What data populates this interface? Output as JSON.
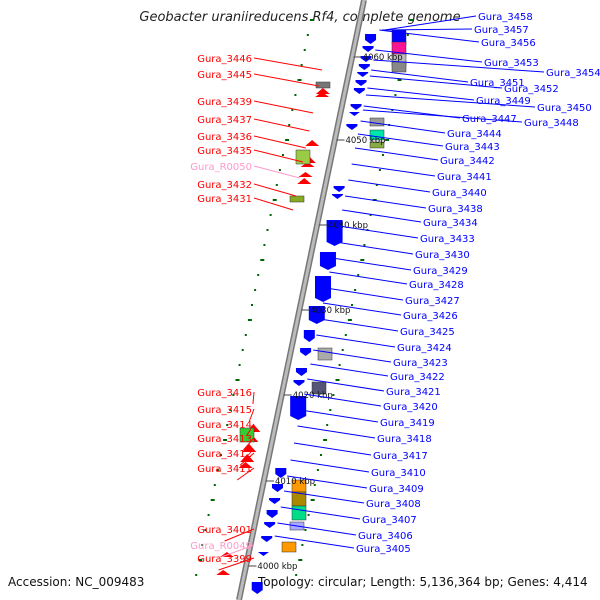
{
  "title": "Geobacter uraniireducens Rf4, complete genome",
  "footer": {
    "accession": "Accession: NC_009483",
    "summary": "Topology: circular; Length: 5,136,364 bp; Genes: 4,414"
  },
  "colors": {
    "forward": "#ff0000",
    "reverse": "#0000ff",
    "rna": "#ff99cc",
    "backbone": "#999999",
    "tick": "#006600"
  },
  "ruler": [
    "4060 kbp",
    "4050 kbp",
    "4040 kbp",
    "4030 kbp",
    "4020 kbp",
    "4010 kbp",
    "4000 kbp"
  ],
  "left_labels": [
    {
      "name": "Gura_3446",
      "type": "gene"
    },
    {
      "name": "Gura_3445",
      "type": "gene"
    },
    {
      "name": "Gura_3439",
      "type": "gene"
    },
    {
      "name": "Gura_3437",
      "type": "gene"
    },
    {
      "name": "Gura_3436",
      "type": "gene"
    },
    {
      "name": "Gura_3435",
      "type": "gene"
    },
    {
      "name": "Gura_R0050",
      "type": "rna"
    },
    {
      "name": "Gura_3432",
      "type": "gene"
    },
    {
      "name": "Gura_3431",
      "type": "gene"
    },
    {
      "name": "Gura_3416",
      "type": "gene"
    },
    {
      "name": "Gura_3415",
      "type": "gene"
    },
    {
      "name": "Gura_3414",
      "type": "gene"
    },
    {
      "name": "Gura_3413",
      "type": "gene"
    },
    {
      "name": "Gura_3412",
      "type": "gene"
    },
    {
      "name": "Gura_3411",
      "type": "gene"
    },
    {
      "name": "Gura_3401",
      "type": "gene"
    },
    {
      "name": "Gura_R0049",
      "type": "rna"
    },
    {
      "name": "Gura_3399",
      "type": "gene"
    }
  ],
  "right_labels": [
    "Gura_3458",
    "Gura_3457",
    "Gura_3456",
    "Gura_3453",
    "Gura_3454",
    "Gura_3451",
    "Gura_3452",
    "Gura_3449",
    "Gura_3450",
    "Gura_3447",
    "Gura_3448",
    "Gura_3444",
    "Gura_3443",
    "Gura_3442",
    "Gura_3441",
    "Gura_3440",
    "Gura_3438",
    "Gura_3434",
    "Gura_3433",
    "Gura_3430",
    "Gura_3429",
    "Gura_3428",
    "Gura_3427",
    "Gura_3426",
    "Gura_3425",
    "Gura_3424",
    "Gura_3423",
    "Gura_3422",
    "Gura_3421",
    "Gura_3420",
    "Gura_3419",
    "Gura_3418",
    "Gura_3417",
    "Gura_3410",
    "Gura_3409",
    "Gura_3408",
    "Gura_3407",
    "Gura_3406",
    "Gura_3405"
  ]
}
